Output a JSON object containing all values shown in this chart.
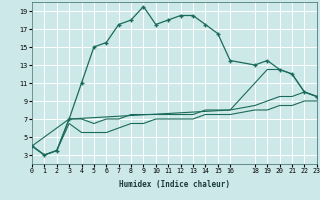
{
  "xlabel": "Humidex (Indice chaleur)",
  "bg_color": "#cce8e8",
  "grid_color": "#ffffff",
  "line_color": "#1a6b5a",
  "series1_x": [
    0,
    1,
    2,
    3,
    4,
    5,
    6,
    7,
    8,
    9,
    10,
    11,
    12,
    13,
    14,
    15,
    16,
    18,
    19,
    20,
    21,
    22,
    23
  ],
  "series1_y": [
    4,
    3,
    3.5,
    7,
    11,
    15,
    15.5,
    17.5,
    18,
    19.5,
    17.5,
    18,
    18.5,
    18.5,
    17.5,
    16.5,
    13.5,
    13,
    13.5,
    12.5,
    12,
    10,
    9.5
  ],
  "series2_x": [
    0,
    1,
    2,
    3,
    4,
    5,
    6,
    7,
    8,
    9,
    10,
    11,
    12,
    13,
    14,
    15,
    16,
    18,
    19,
    20,
    21,
    22,
    23
  ],
  "series2_y": [
    4,
    3,
    3.5,
    7,
    7,
    6.5,
    7,
    7,
    7.5,
    7.5,
    7.5,
    7.5,
    7.5,
    7.5,
    8,
    8,
    8,
    8.5,
    9,
    9.5,
    9.5,
    10,
    9.5
  ],
  "series3_x": [
    0,
    1,
    2,
    3,
    4,
    5,
    6,
    7,
    8,
    9,
    10,
    11,
    12,
    13,
    14,
    15,
    16,
    18,
    19,
    20,
    21,
    22,
    23
  ],
  "series3_y": [
    4,
    3,
    3.5,
    6.5,
    5.5,
    5.5,
    5.5,
    6,
    6.5,
    6.5,
    7,
    7,
    7,
    7,
    7.5,
    7.5,
    7.5,
    8,
    8,
    8.5,
    8.5,
    9,
    9
  ],
  "series4_x": [
    0,
    3,
    16,
    19,
    20,
    21,
    22,
    23
  ],
  "series4_y": [
    4,
    7,
    8,
    12.5,
    12.5,
    12,
    10,
    9.5
  ],
  "xlim": [
    0,
    23
  ],
  "ylim": [
    2,
    20
  ],
  "yticks": [
    3,
    5,
    7,
    9,
    11,
    13,
    15,
    17,
    19
  ],
  "xticks": [
    0,
    1,
    2,
    3,
    4,
    5,
    6,
    7,
    8,
    9,
    10,
    11,
    12,
    13,
    14,
    15,
    16,
    18,
    19,
    20,
    21,
    22,
    23
  ],
  "xlabel_fontsize": 5.5,
  "ylabel_fontsize": 5.5,
  "tick_fontsize": 4.8
}
